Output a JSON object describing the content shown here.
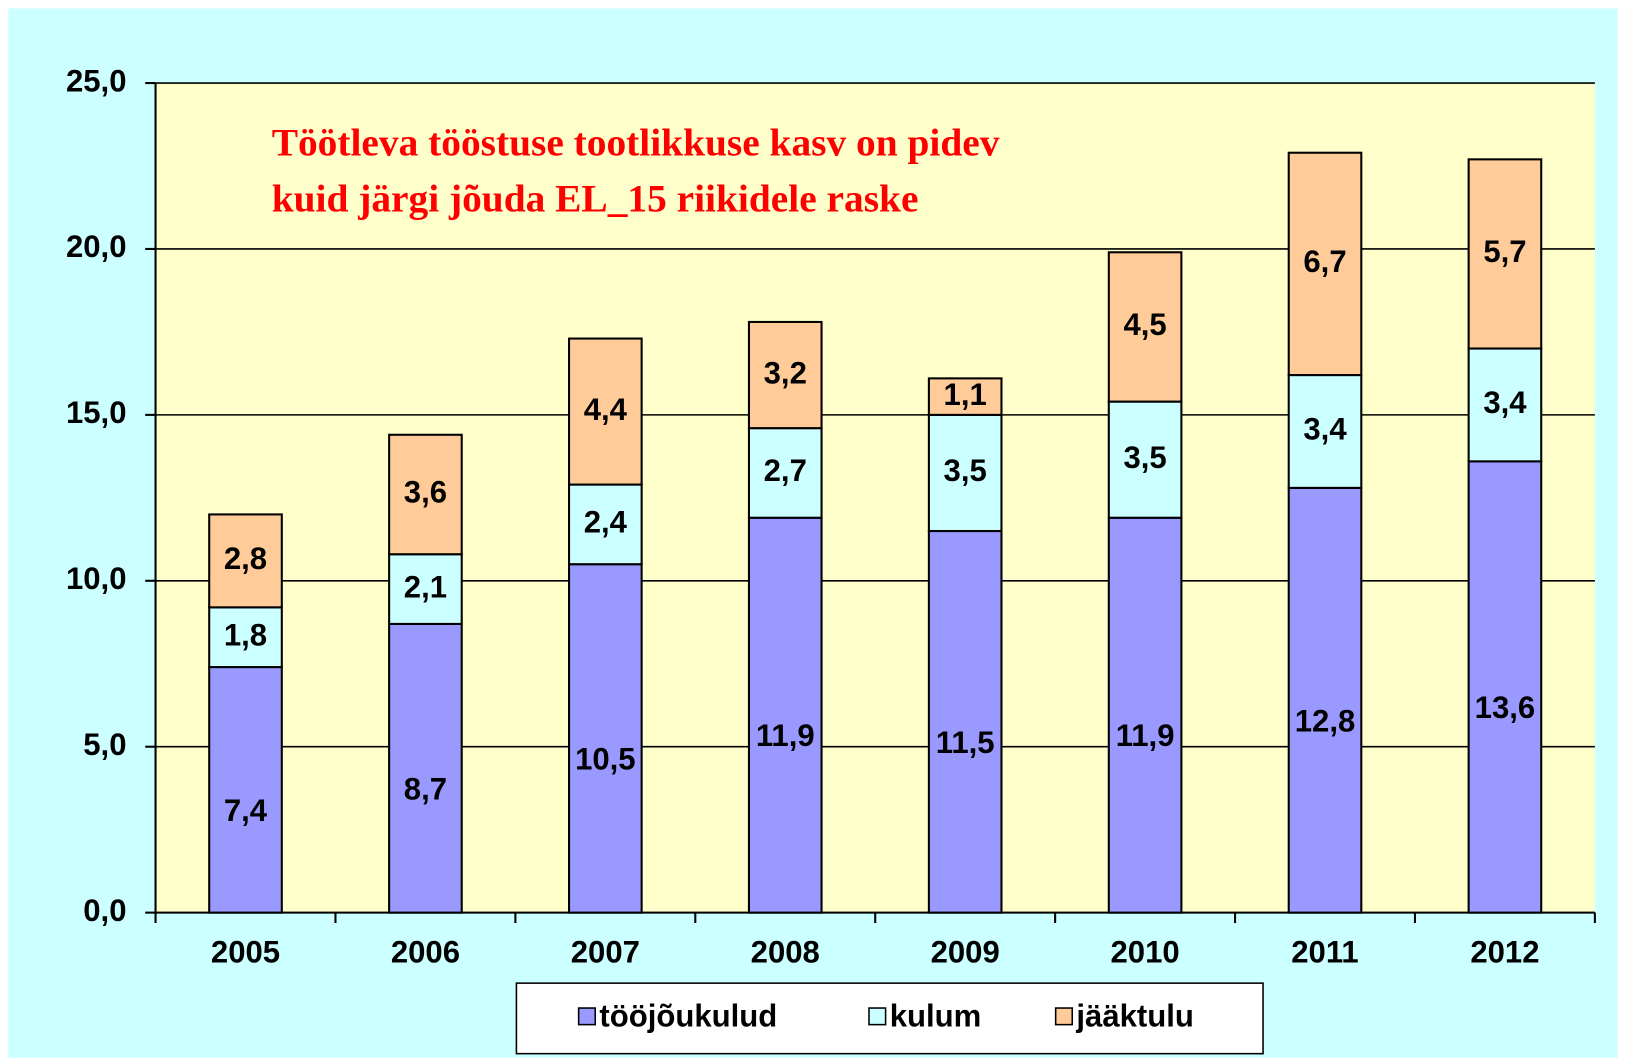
{
  "chart_data": {
    "type": "stacked_bar",
    "title": [
      "Töötleva tööstuse tootlikkuse kasv on pidev",
      "kuid järgi jõuda EL_15 riikidele raske"
    ],
    "categories": [
      "2005",
      "2006",
      "2007",
      "2008",
      "2009",
      "2010",
      "2011",
      "2012"
    ],
    "series": [
      {
        "name": "tööjõukulud",
        "color": "#9999ff",
        "values": [
          7.4,
          8.7,
          10.5,
          11.9,
          11.5,
          11.9,
          12.8,
          13.6
        ],
        "value_labels": [
          "7,4",
          "8,7",
          "10,5",
          "11,9",
          "11,5",
          "11,9",
          "12,8",
          "13,6"
        ]
      },
      {
        "name": "kulum",
        "color": "#ccffff",
        "values": [
          1.8,
          2.1,
          2.4,
          2.7,
          3.5,
          3.5,
          3.4,
          3.4
        ],
        "value_labels": [
          "1,8",
          "2,1",
          "2,4",
          "2,7",
          "3,5",
          "3,5",
          "3,4",
          "3,4"
        ]
      },
      {
        "name": "jääktulu",
        "color": "#ffcc99",
        "values": [
          2.8,
          3.6,
          4.4,
          3.2,
          1.1,
          4.5,
          6.7,
          5.7
        ],
        "value_labels": [
          "2,8",
          "3,6",
          "4,4",
          "3,2",
          "1,1",
          "4,5",
          "6,7",
          "5,7"
        ]
      }
    ],
    "ylim": [
      0,
      25
    ],
    "yticks": [
      {
        "value": 0,
        "label": "0,0"
      },
      {
        "value": 5,
        "label": "5,0"
      },
      {
        "value": 10,
        "label": "10,0"
      },
      {
        "value": 15,
        "label": "15,0"
      },
      {
        "value": 20,
        "label": "20,0"
      },
      {
        "value": 25,
        "label": "25,0"
      }
    ],
    "grid": true,
    "legend": "bottom"
  }
}
